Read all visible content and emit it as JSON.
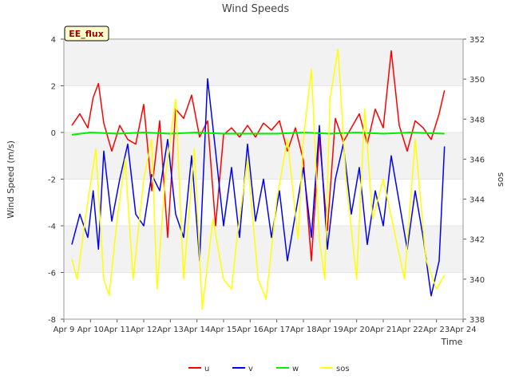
{
  "chart_data": {
    "type": "line",
    "title": "Wind Speeds",
    "badge": "EE_flux",
    "xlabel": "Time",
    "ylabel": "Wind Speed (m/s)",
    "y2label": "sos",
    "x_ticks": [
      "Apr 9",
      "Apr 10",
      "Apr 11",
      "Apr 12",
      "Apr 13",
      "Apr 14",
      "Apr 15",
      "Apr 16",
      "Apr 17",
      "Apr 18",
      "Apr 19",
      "Apr 20",
      "Apr 21",
      "Apr 22",
      "Apr 23",
      "Apr 24"
    ],
    "xlim": [
      0,
      15
    ],
    "ylim": [
      -8,
      4
    ],
    "y_ticks": [
      -8,
      -6,
      -4,
      -2,
      0,
      2,
      4
    ],
    "y2lim": [
      338,
      352
    ],
    "y2_ticks": [
      338,
      340,
      342,
      344,
      346,
      348,
      350,
      352
    ],
    "grid": "horizontal bands",
    "legend_position": "bottom-center",
    "series": [
      {
        "name": "u",
        "axis": "left",
        "color": "#ff0000",
        "x": [
          0.3,
          0.6,
          0.9,
          1.1,
          1.3,
          1.5,
          1.8,
          2.1,
          2.4,
          2.7,
          3.0,
          3.3,
          3.6,
          3.9,
          4.2,
          4.5,
          4.8,
          5.1,
          5.4,
          5.7,
          6.0,
          6.3,
          6.6,
          6.9,
          7.2,
          7.5,
          7.8,
          8.1,
          8.4,
          8.7,
          9.0,
          9.3,
          9.6,
          9.9,
          10.2,
          10.5,
          10.8,
          11.1,
          11.4,
          11.7,
          12.0,
          12.3,
          12.6,
          12.9,
          13.2,
          13.5,
          13.8,
          14.1,
          14.3
        ],
        "values": [
          0.3,
          0.8,
          0.2,
          1.5,
          2.1,
          0.4,
          -0.8,
          0.3,
          -0.3,
          -0.5,
          1.2,
          -2.5,
          0.5,
          -4.5,
          1.0,
          0.6,
          1.6,
          -0.2,
          0.5,
          -4.0,
          -0.1,
          0.2,
          -0.2,
          0.3,
          -0.2,
          0.4,
          0.1,
          0.5,
          -0.8,
          0.2,
          -1.2,
          -5.5,
          -0.2,
          -4.2,
          0.6,
          -0.4,
          0.2,
          0.8,
          -0.5,
          1.0,
          0.2,
          3.5,
          0.3,
          -0.8,
          0.5,
          0.2,
          -0.3,
          0.8,
          1.8
        ]
      },
      {
        "name": "v",
        "axis": "left",
        "color": "#0000ff",
        "x": [
          0.3,
          0.6,
          0.9,
          1.1,
          1.3,
          1.5,
          1.8,
          2.1,
          2.4,
          2.7,
          3.0,
          3.3,
          3.6,
          3.9,
          4.2,
          4.5,
          4.8,
          5.1,
          5.4,
          5.7,
          6.0,
          6.3,
          6.6,
          6.9,
          7.2,
          7.5,
          7.8,
          8.1,
          8.4,
          8.7,
          9.0,
          9.3,
          9.6,
          9.9,
          10.2,
          10.5,
          10.8,
          11.1,
          11.4,
          11.7,
          12.0,
          12.3,
          12.6,
          12.9,
          13.2,
          13.5,
          13.8,
          14.1,
          14.3
        ],
        "values": [
          -4.8,
          -3.5,
          -4.5,
          -2.5,
          -5.0,
          -0.8,
          -3.8,
          -2.0,
          -0.5,
          -3.5,
          -4.0,
          -1.8,
          -2.5,
          -0.3,
          -3.5,
          -4.5,
          -1.0,
          -5.5,
          2.3,
          -0.8,
          -4.0,
          -1.5,
          -4.5,
          -0.5,
          -3.8,
          -2.0,
          -4.5,
          -2.5,
          -5.5,
          -3.5,
          -1.5,
          -4.5,
          0.3,
          -5.0,
          -2.0,
          -0.5,
          -3.5,
          -1.5,
          -4.8,
          -2.5,
          -4.0,
          -1.0,
          -3.0,
          -5.0,
          -2.5,
          -4.5,
          -7.0,
          -5.5,
          -0.6
        ]
      },
      {
        "name": "w",
        "axis": "left",
        "color": "#00ee00",
        "x": [
          0.3,
          1.0,
          2.0,
          3.0,
          4.0,
          5.0,
          6.0,
          7.0,
          8.0,
          9.0,
          10.0,
          11.0,
          12.0,
          13.0,
          14.3
        ],
        "values": [
          -0.1,
          0.0,
          -0.05,
          0.0,
          -0.05,
          0.0,
          -0.05,
          -0.05,
          -0.05,
          0.0,
          -0.05,
          0.0,
          -0.05,
          0.0,
          -0.05
        ]
      },
      {
        "name": "sos",
        "axis": "right",
        "color": "#ffff00",
        "x": [
          0.3,
          0.5,
          0.8,
          1.2,
          1.5,
          1.7,
          2.0,
          2.3,
          2.6,
          3.0,
          3.3,
          3.5,
          3.8,
          4.2,
          4.5,
          4.9,
          5.2,
          5.6,
          6.0,
          6.3,
          6.5,
          6.9,
          7.3,
          7.6,
          8.0,
          8.4,
          8.8,
          9.0,
          9.3,
          9.6,
          9.8,
          10.0,
          10.3,
          10.6,
          11.0,
          11.3,
          11.6,
          12.0,
          12.4,
          12.8,
          13.2,
          13.6,
          14.0,
          14.3
        ],
        "values": [
          341.0,
          340.0,
          343.0,
          346.5,
          340.0,
          339.2,
          343.0,
          346.0,
          340.0,
          345.0,
          347.0,
          339.5,
          345.0,
          349.0,
          340.0,
          346.5,
          338.5,
          343.0,
          340.0,
          339.5,
          342.0,
          346.0,
          340.0,
          339.0,
          344.0,
          347.0,
          342.0,
          347.0,
          350.5,
          342.0,
          340.0,
          349.0,
          351.5,
          345.0,
          340.0,
          348.5,
          343.0,
          345.0,
          342.5,
          340.0,
          347.0,
          341.0,
          339.5,
          340.2
        ]
      }
    ]
  }
}
